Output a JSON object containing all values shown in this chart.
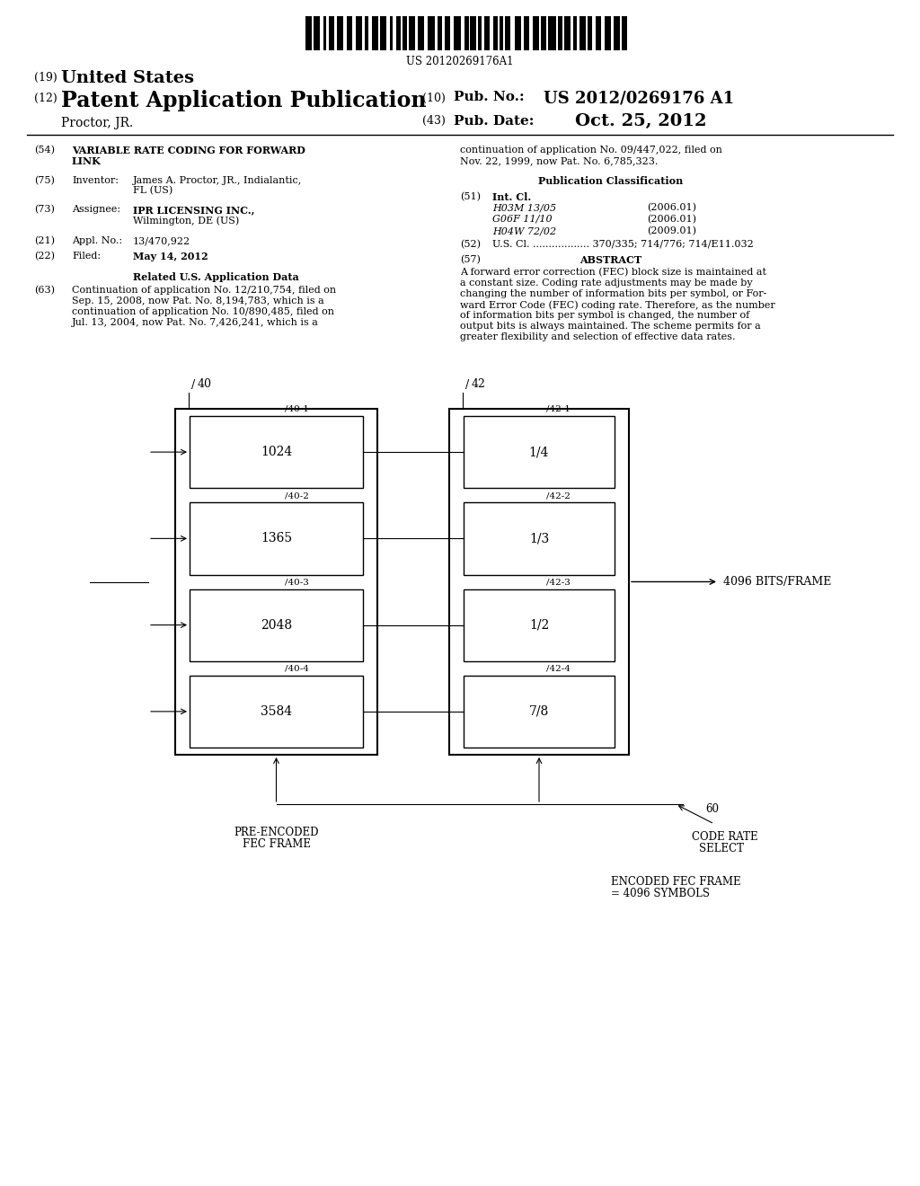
{
  "background_color": "#ffffff",
  "barcode_text": "US 20120269176A1",
  "header": {
    "us_label": "(19) United States",
    "patent_label": "(12) Patent Application Publication",
    "inventor_name": "Proctor, JR.",
    "pub_no_label": "(10) Pub. No.:",
    "pub_no_value": "US 2012/0269176 A1",
    "pub_date_label": "(43) Pub. Date:",
    "pub_date_value": "Oct. 25, 2012"
  },
  "left_col": {
    "title_num": "(54)",
    "title_text": "VARIABLE RATE CODING FOR FORWARD\nLINK",
    "inventor_num": "(75)",
    "inventor_label": "Inventor:",
    "inventor_value": "James A. Proctor, JR., Indialantic,\nFL (US)",
    "assignee_num": "(73)",
    "assignee_label": "Assignee:",
    "assignee_value": "IPR LICENSING INC.,\nWilmington, DE (US)",
    "appl_num": "(21)",
    "appl_label": "Appl. No.:",
    "appl_value": "13/470,922",
    "filed_num": "(22)",
    "filed_label": "Filed:",
    "filed_value": "May 14, 2012",
    "related_header": "Related U.S. Application Data",
    "related_num": "(63)",
    "related_text": "Continuation of application No. 12/210,754, filed on\nSep. 15, 2008, now Pat. No. 8,194,783, which is a\ncontinuation of application No. 10/890,485, filed on\nJul. 13, 2004, now Pat. No. 7,426,241, which is a"
  },
  "right_col": {
    "cont_text": "continuation of application No. 09/447,022, filed on\nNov. 22, 1999, now Pat. No. 6,785,323.",
    "pub_class_header": "Publication Classification",
    "intcl_num": "(51)",
    "intcl_label": "Int. Cl.",
    "intcl_entries": [
      [
        "H03M 13/05",
        "(2006.01)"
      ],
      [
        "G06F 11/10",
        "(2006.01)"
      ],
      [
        "H04W 72/02",
        "(2009.01)"
      ]
    ],
    "uscl_num": "(52)",
    "uscl_label": "U.S. Cl. .................",
    "uscl_value": "370/335; 714/776; 714/E11.032",
    "abstract_num": "(57)",
    "abstract_header": "ABSTRACT",
    "abstract_text": "A forward error correction (FEC) block size is maintained at\na constant size. Coding rate adjustments may be made by\nchanging the number of information bits per symbol, or For-\nward Error Code (FEC) coding rate. Therefore, as the number\nof information bits per symbol is changed, the number of\noutput bits is always maintained. The scheme permits for a\ngreater flexibility and selection of effective data rates."
  },
  "diagram": {
    "left_labels": [
      "1024",
      "1365",
      "2048",
      "3584"
    ],
    "left_sub_labels": [
      "40-1",
      "40-2",
      "40-3",
      "40-4"
    ],
    "right_labels": [
      "1/4",
      "1/3",
      "1/2",
      "7/8"
    ],
    "right_sub_labels": [
      "42-1",
      "42-2",
      "42-3",
      "42-4"
    ],
    "output_label": "4096 BITS/FRAME",
    "pre_encoded_label": "PRE-ENCODED\nFEC FRAME",
    "code_rate_num": "60",
    "code_rate_label": "CODE RATE\nSELECT",
    "encoded_label": "ENCODED FEC FRAME\n= 4096 SYMBOLS"
  }
}
